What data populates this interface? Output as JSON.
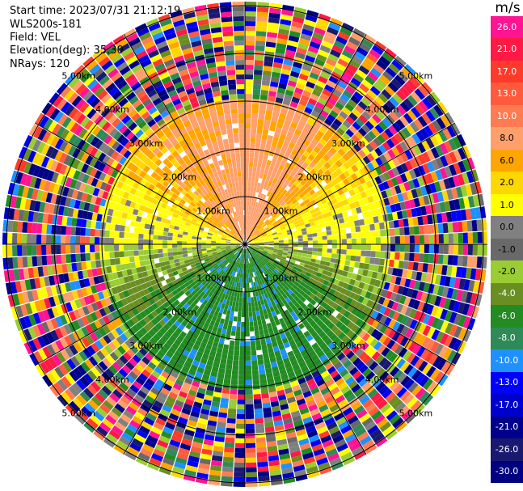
{
  "header": {
    "start_time": "Start time: 2023/07/31 21:12:19",
    "instrument": "WLS200s-181",
    "field": "Field: VEL",
    "elevation": "Elevation(deg): 35.30",
    "nrays": "NRays: 120"
  },
  "range_rings": {
    "labels": [
      "1.00km",
      "2.00km",
      "3.00km",
      "4.00km",
      "5.00km"
    ],
    "ranges_km": [
      1,
      2,
      3,
      4,
      5
    ]
  },
  "colorbar": {
    "unit": "m/s",
    "ticks": [
      "26.0",
      "21.0",
      "17.0",
      "13.0",
      "10.0",
      "8.0",
      "6.0",
      "2.0",
      "1.0",
      "0.0",
      "-1.0",
      "-2.0",
      "-4.0",
      "-6.0",
      "-8.0",
      "-10.0",
      "-13.0",
      "-17.0",
      "-21.0",
      "-26.0",
      "-30.0"
    ],
    "colors": [
      "#ff1493",
      "#ff1a46",
      "#ff3a2a",
      "#ff5a3c",
      "#ff7b52",
      "#ff9f6a",
      "#ffa500",
      "#ffd700",
      "#ffff00",
      "#808080",
      "#696969",
      "#9acd32",
      "#6b8e23",
      "#228b22",
      "#2e8b57",
      "#1e90ff",
      "#0000ff",
      "#0000cd",
      "#00008b",
      "#191970",
      "#000080"
    ]
  }
}
